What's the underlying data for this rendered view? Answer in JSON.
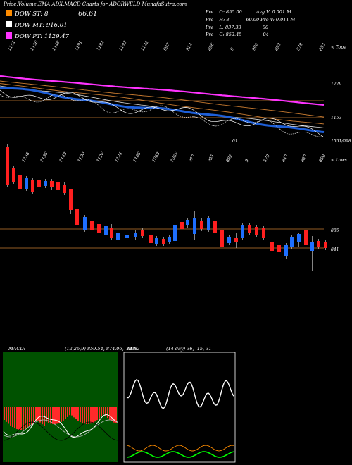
{
  "header": {
    "title": "Price,Volume,EMA,ADX,MACD Charts for ADORWELD MunafaSutra.com",
    "legend": [
      {
        "label": "DOW ST: 8",
        "value": "66.61",
        "color": "#ff8c00"
      },
      {
        "label": "DOW MT: 916.01",
        "value": "",
        "color": "#ffffff"
      },
      {
        "label": "DOW PT: 1129.47",
        "value": "",
        "color": "#ff33ff"
      }
    ],
    "info": [
      {
        "a": "Pre",
        "b": "O: 855.00",
        "c": "Avg V: 0.001 M"
      },
      {
        "a": "Pre",
        "b": "H: 8",
        "c": "60.00  Pre  V: 0.011 M"
      },
      {
        "a": "Pre",
        "b": "L: 837.33",
        "c": "00"
      },
      {
        "a": "Pre",
        "b": "C: 852.45",
        "c": "04"
      }
    ]
  },
  "upper": {
    "top_labels": [
      "1154",
      "1136",
      "1140",
      "1191",
      "1182",
      "1193",
      "1122",
      "997",
      "912",
      "896",
      "9",
      "998",
      "893",
      "878",
      "853"
    ],
    "right_labels": [
      {
        "text": "< Tops",
        "y": 68
      },
      {
        "text": "1229",
        "y": 120
      },
      {
        "text": "1153",
        "y": 168
      },
      {
        "text": "1561/098",
        "y": 201
      }
    ],
    "extra_label": "01",
    "hlines": [
      143,
      167
    ]
  },
  "lower": {
    "top_labels": [
      "1158",
      "1196",
      "1143",
      "1130",
      "1126",
      "1124",
      "1106",
      "1063",
      "1065",
      "977",
      "955",
      "882",
      "9",
      "878",
      "847",
      "887",
      "850"
    ],
    "right_labels": [
      {
        "text": "< Lows",
        "y": 228
      },
      {
        "text": "885",
        "y": 328
      },
      {
        "text": "841",
        "y": 355
      }
    ],
    "hlines": [
      325,
      352
    ]
  },
  "macd": {
    "title": "MACD:",
    "values": "(12,26,9) 859.54, 874.06, -14.52"
  },
  "adx": {
    "title": "ADX",
    "values": "(14 day) 36, -15, 31"
  },
  "chart_data": [
    {
      "type": "candlestick",
      "title": "Price,Volume,EMA,ADX,MACD Charts for ADORWELD MunafaSutra.com",
      "series": [
        {
          "name": "DOW ST",
          "color": "#ff8c00"
        },
        {
          "name": "DOW MT",
          "color": "#ffffff"
        },
        {
          "name": "DOW PT",
          "color": "#ff33ff"
        }
      ],
      "levels": [
        1229,
        1153,
        885,
        841
      ],
      "ylim": [
        800,
        1500
      ]
    },
    {
      "type": "bar",
      "title": "MACD",
      "values_label": "(12,26,9) 859.54, 874.06, -14.52"
    },
    {
      "type": "line",
      "title": "ADX",
      "values_label": "(14 day) 36, -15, 31"
    }
  ]
}
